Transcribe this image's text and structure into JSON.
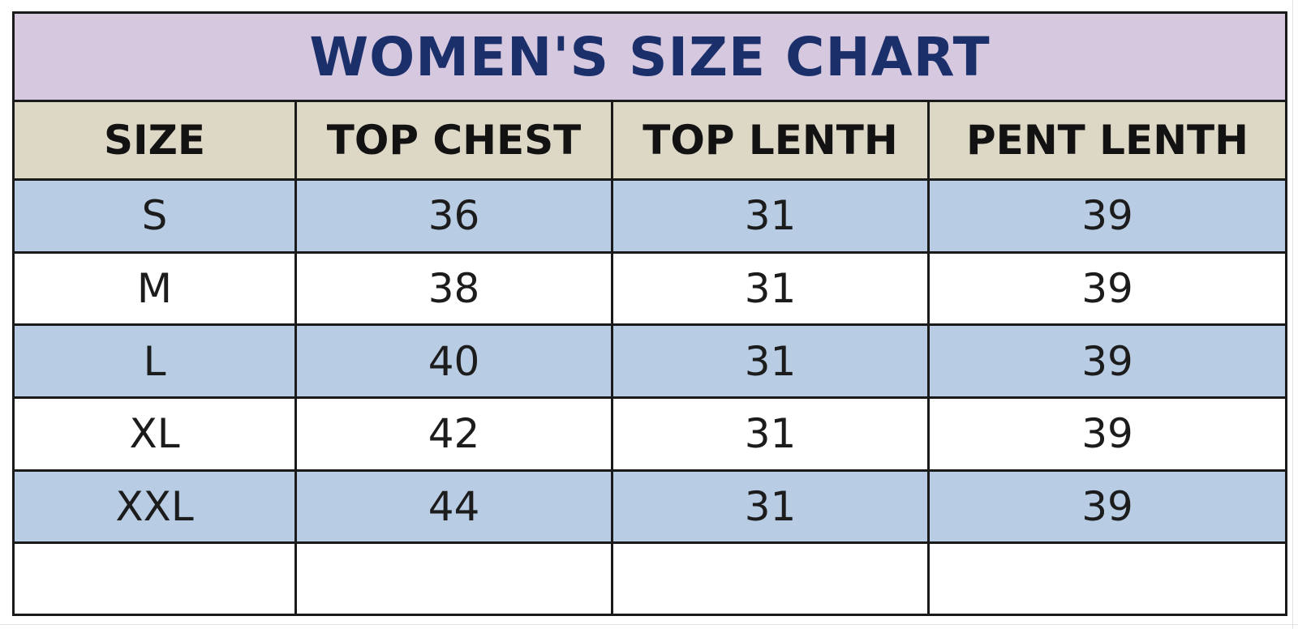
{
  "title": "WOMEN'S SIZE CHART",
  "colors": {
    "title_bg": "#d6c8df",
    "title_text": "#1b2f6b",
    "header_bg": "#ddd8c6",
    "band_bg": "#b8cce4",
    "border": "#1a1a1a"
  },
  "headers": [
    "SIZE",
    "TOP CHEST",
    "TOP LENTH",
    "PENT LENTH"
  ],
  "rows": [
    {
      "size": "S",
      "top_chest": "36",
      "top_length": "31",
      "pent_length": "39"
    },
    {
      "size": "M",
      "top_chest": "38",
      "top_length": "31",
      "pent_length": "39"
    },
    {
      "size": "L",
      "top_chest": "40",
      "top_length": "31",
      "pent_length": "39"
    },
    {
      "size": "XL",
      "top_chest": "42",
      "top_length": "31",
      "pent_length": "39"
    },
    {
      "size": "XXL",
      "top_chest": "44",
      "top_length": "31",
      "pent_length": "39"
    }
  ]
}
